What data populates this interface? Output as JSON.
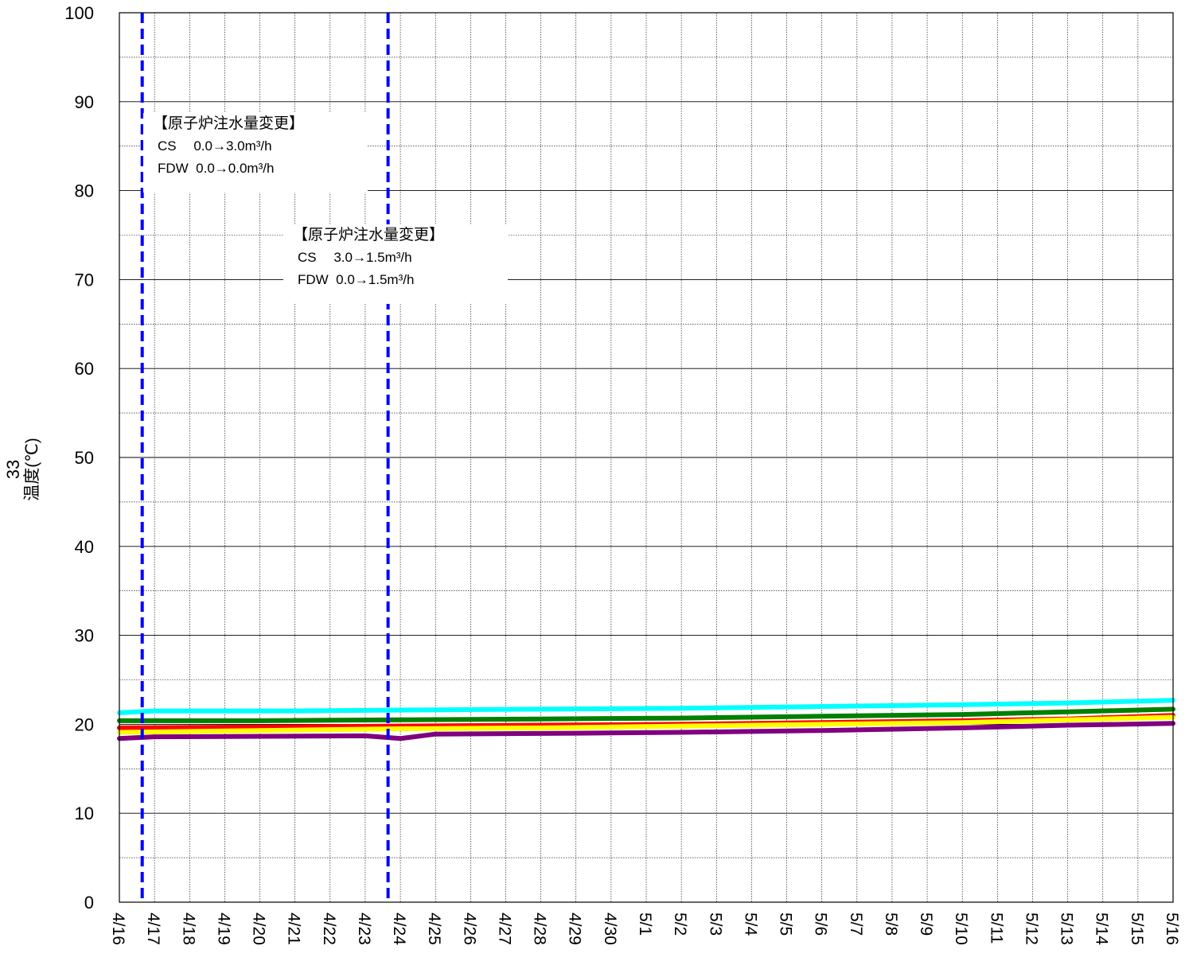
{
  "chart_data": {
    "type": "line",
    "title": "",
    "ylabel_number": "33",
    "ylabel": "温度(℃)",
    "xlabel": "",
    "ylim": [
      0,
      100
    ],
    "yticks": [
      "0",
      "10",
      "20",
      "30",
      "40",
      "50",
      "60",
      "70",
      "80",
      "90",
      "100"
    ],
    "xticks": [
      "4/16",
      "4/17",
      "4/18",
      "4/19",
      "4/20",
      "4/21",
      "4/22",
      "4/23",
      "4/24",
      "4/25",
      "4/26",
      "4/27",
      "4/28",
      "4/29",
      "4/30",
      "5/1",
      "5/2",
      "5/3",
      "5/4",
      "5/5",
      "5/6",
      "5/7",
      "5/8",
      "5/9",
      "5/10",
      "5/11",
      "5/12",
      "5/13",
      "5/14",
      "5/15",
      "5/16"
    ],
    "grid": true,
    "series": [
      {
        "color": "#00ffff",
        "points": [
          [
            0,
            21.3
          ],
          [
            1,
            21.5
          ],
          [
            5,
            21.5
          ],
          [
            8,
            21.6
          ],
          [
            12,
            21.7
          ],
          [
            16,
            21.8
          ],
          [
            20,
            22.0
          ],
          [
            24,
            22.2
          ],
          [
            27,
            22.4
          ],
          [
            30,
            22.7
          ]
        ]
      },
      {
        "color": "#008000",
        "points": [
          [
            0,
            20.4
          ],
          [
            4,
            20.4
          ],
          [
            8,
            20.5
          ],
          [
            12,
            20.6
          ],
          [
            16,
            20.7
          ],
          [
            20,
            20.9
          ],
          [
            24,
            21.1
          ],
          [
            27,
            21.4
          ],
          [
            30,
            21.7
          ]
        ]
      },
      {
        "color": "#ff0000",
        "points": [
          [
            0,
            19.6
          ],
          [
            4,
            19.7
          ],
          [
            8,
            19.8
          ],
          [
            12,
            19.9
          ],
          [
            16,
            20.0
          ],
          [
            20,
            20.2
          ],
          [
            24,
            20.4
          ],
          [
            27,
            20.6
          ],
          [
            30,
            21.0
          ]
        ]
      },
      {
        "color": "#ffff00",
        "points": [
          [
            0,
            19.1
          ],
          [
            4,
            19.3
          ],
          [
            8,
            19.5
          ],
          [
            12,
            19.6
          ],
          [
            16,
            19.8
          ],
          [
            20,
            20.0
          ],
          [
            24,
            20.2
          ],
          [
            27,
            20.5
          ],
          [
            30,
            20.8
          ]
        ]
      },
      {
        "color": "#800080",
        "points": [
          [
            0,
            18.4
          ],
          [
            1,
            18.6
          ],
          [
            7,
            18.7
          ],
          [
            8,
            18.4
          ],
          [
            9,
            18.9
          ],
          [
            13,
            19.0
          ],
          [
            16,
            19.1
          ],
          [
            20,
            19.3
          ],
          [
            24,
            19.6
          ],
          [
            27,
            19.9
          ],
          [
            30,
            20.1
          ]
        ]
      }
    ],
    "events": [
      {
        "x": 0.65,
        "color": "#0000ff"
      },
      {
        "x": 7.65,
        "color": "#0000ff"
      }
    ]
  },
  "annotations": [
    {
      "heading": "【原子炉注水量変更】",
      "line1": "CS　 0.0→3.0m³/h",
      "line2": "FDW  0.0→0.0m³/h"
    },
    {
      "heading": "【原子炉注水量変更】",
      "line1": "CS　 3.0→1.5m³/h",
      "line2": "FDW  0.0→1.5m³/h"
    }
  ]
}
